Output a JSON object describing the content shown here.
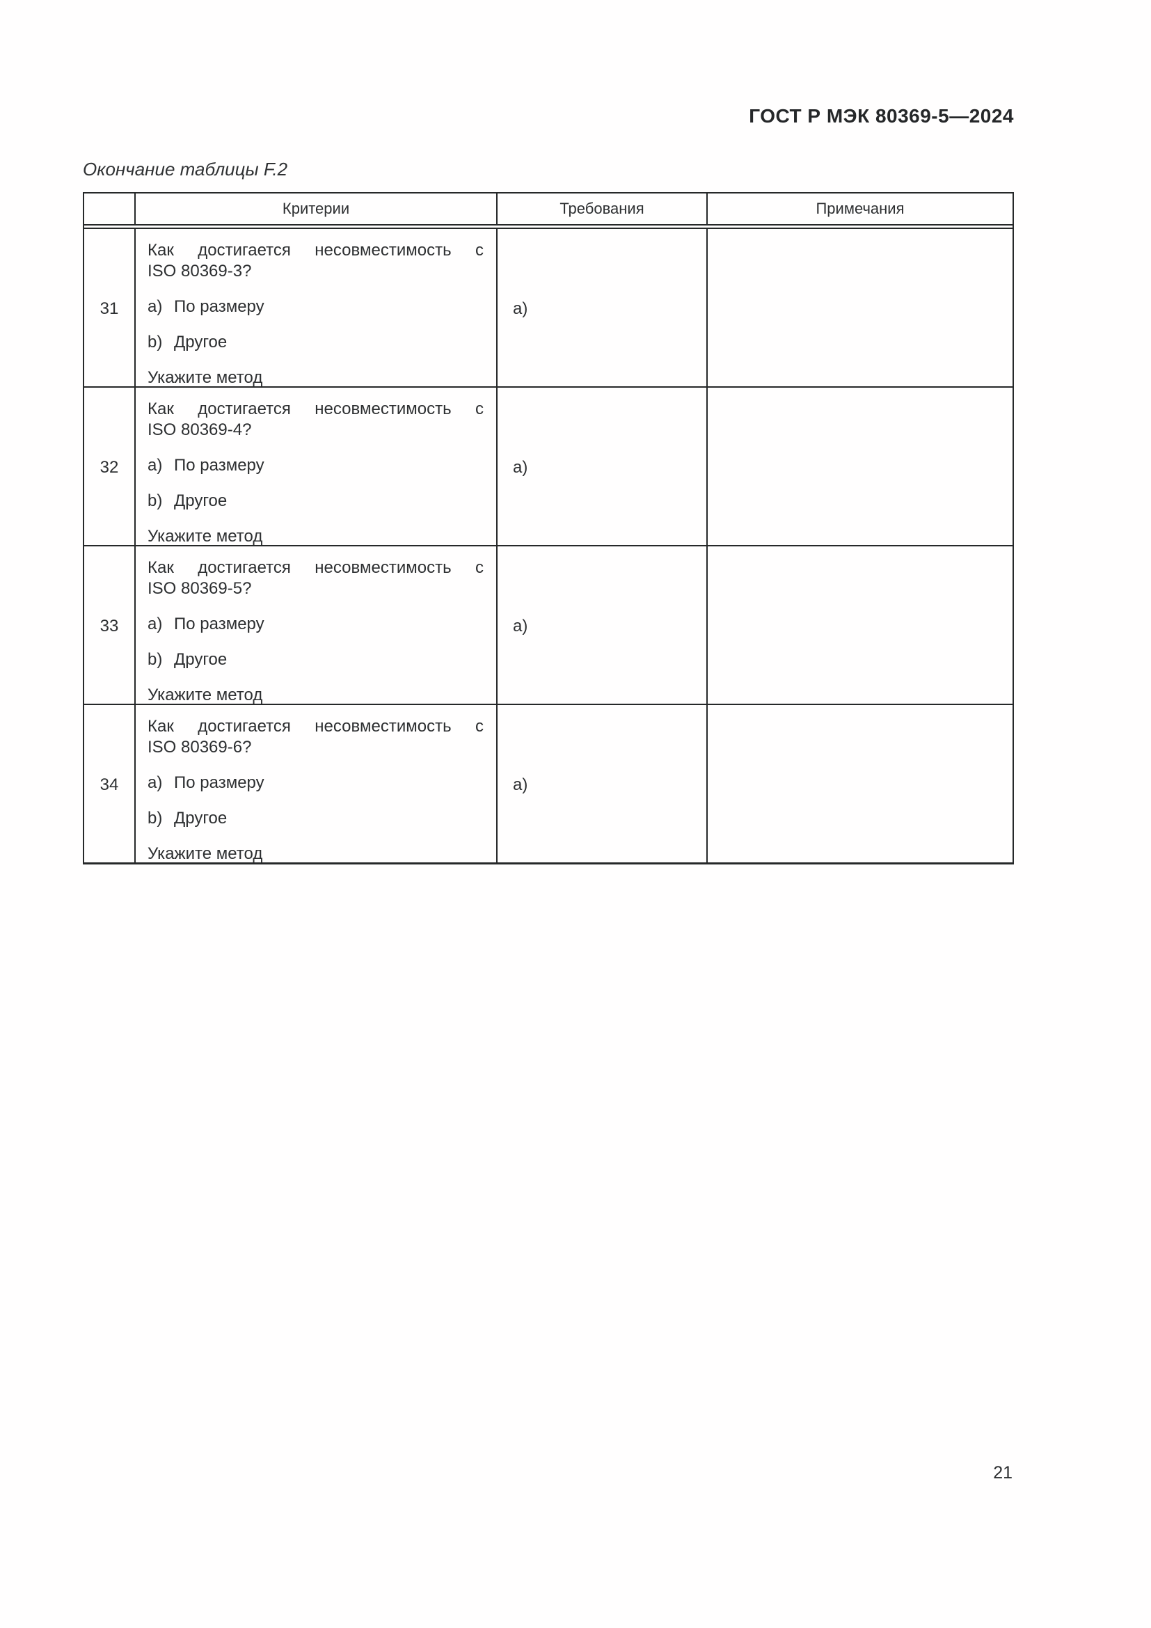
{
  "page": {
    "header_title": "ГОСТ Р МЭК 80369-5—2024",
    "caption": "Окончание таблицы F.2",
    "page_number": "21"
  },
  "colors": {
    "text": "#2d2f31",
    "border": "#262829",
    "background": "#fffefe"
  },
  "table": {
    "columns": {
      "num": "",
      "criteria": "Критерии",
      "requirements": "Требования",
      "notes": "Примечания"
    },
    "rows": [
      {
        "number": "31",
        "question_line1": "Как достигается несовместимость с",
        "question_line2": "ISO 80369-3?",
        "item_a_marker": "a)",
        "item_a_text": "По размеру",
        "item_b_marker": "b)",
        "item_b_text": "Другое",
        "footer": "Укажите метод",
        "requirement": "а)",
        "note": ""
      },
      {
        "number": "32",
        "question_line1": "Как достигается несовместимость с",
        "question_line2": "ISO 80369-4?",
        "item_a_marker": "a)",
        "item_a_text": "По размеру",
        "item_b_marker": "b)",
        "item_b_text": "Другое",
        "footer": "Укажите метод",
        "requirement": "а)",
        "note": ""
      },
      {
        "number": "33",
        "question_line1": "Как достигается несовместимость с",
        "question_line2": "ISO 80369-5?",
        "item_a_marker": "a)",
        "item_a_text": "По размеру",
        "item_b_marker": "b)",
        "item_b_text": "Другое",
        "footer": "Укажите метод",
        "requirement": "а)",
        "note": ""
      },
      {
        "number": "34",
        "question_line1": "Как достигается несовместимость с",
        "question_line2": "ISO 80369-6?",
        "item_a_marker": "a)",
        "item_a_text": "По размеру",
        "item_b_marker": "b)",
        "item_b_text": "Другое",
        "footer": "Укажите метод",
        "requirement": "а)",
        "note": ""
      }
    ]
  }
}
